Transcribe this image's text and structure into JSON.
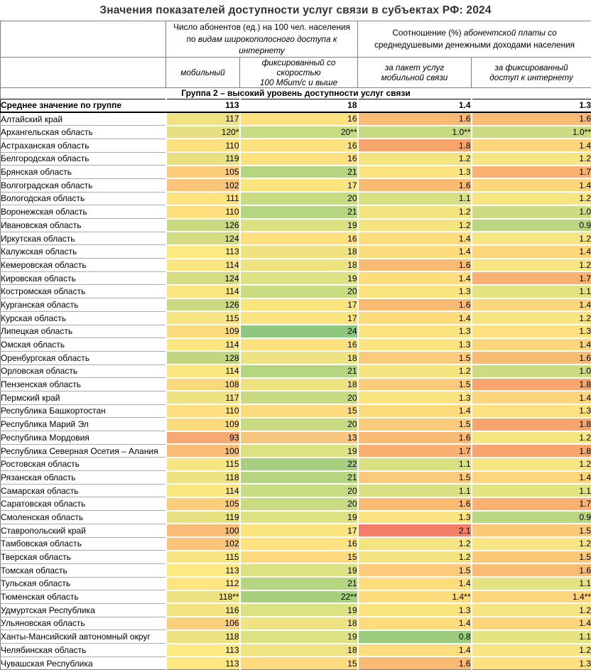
{
  "title": "Значения показателей доступности услуг связи в субъектах РФ: 2024",
  "header": {
    "group1": {
      "line1": "Число абонентов (ед.) на 100 чел. населения",
      "line2_prefix": "по ",
      "line2_italic": "видам широкополосного доступа к интернету",
      "sub1": "мобильный",
      "sub2_line1": "фиксированный со скоростью",
      "sub2_line2": "100 Мбит/с и выше"
    },
    "group2": {
      "line1_prefix": "Соотношение (%) ",
      "line1_italic": "абонентской платы со",
      "line2": "среднедушевыми денежными доходами населения",
      "sub1_line1": "за пакет услуг",
      "sub1_line2": "мобильной связи",
      "sub2_line1": "за фиксированный",
      "sub2_line2": "доступ к интернету"
    }
  },
  "group_row": "Группа 2 – высокий уровень доступности услуг связи",
  "average_row": {
    "label": "Среднее значение по группе",
    "values": [
      "113",
      "18",
      "1.4",
      "1.3"
    ]
  },
  "color_scales": {
    "c1": {
      "93": "#F8A873",
      "100": "#F9BD77",
      "102": "#FAC479",
      "105": "#FBCC7A",
      "106": "#FBCF7B",
      "108": "#FCD87D",
      "109": "#FCDB7D",
      "110": "#FDDF7D",
      "111": "#FDE27E",
      "112": "#FEE57F",
      "113": "#FEE880",
      "114": "#FBE680",
      "115": "#F6E580",
      "116": "#F2E480",
      "117": "#EFE381",
      "118": "#ECE281",
      "119": "#E7E182",
      "120": "#E3E082",
      "124": "#D3DC81",
      "126": "#CBD980",
      "128": "#C2D67F"
    },
    "c2": {
      "13": "#F8C57E",
      "15": "#FCDA7D",
      "16": "#FDE17E",
      "17": "#FAE47F",
      "18": "#EFE381",
      "19": "#DCE182",
      "20": "#C8DB81",
      "21": "#B6D580",
      "22": "#A6D07F",
      "24": "#8DC87E"
    },
    "c3": {
      "0.8": "#9CCD7E",
      "1.0": "#C6DB81",
      "1.1": "#D9E081",
      "1.2": "#F4E480",
      "1.3": "#FBE37F",
      "1.4": "#FDDC7C",
      "1.5": "#FACB7A",
      "1.6": "#F9BA73",
      "1.7": "#F8AF6F",
      "1.8": "#F7A46A",
      "2.1": "#F57E69"
    },
    "c4": {
      "0.9": "#BBD680",
      "1.0": "#CDDC81",
      "1.1": "#E4E381",
      "1.2": "#F7E581",
      "1.3": "#FDE17E",
      "1.4": "#FDD67B",
      "1.5": "#FBC878",
      "1.6": "#FABB74",
      "1.7": "#F9B070",
      "1.8": "#F7A56C"
    }
  },
  "rows": [
    {
      "region": "Алтайский край",
      "values": [
        "117",
        "16",
        "1.6",
        "1.6"
      ]
    },
    {
      "region": "Архангельская область",
      "values": [
        "120*",
        "20**",
        "1.0**",
        "1.0**"
      ]
    },
    {
      "region": "Астраханская область",
      "values": [
        "110",
        "16",
        "1.8",
        "1.4"
      ]
    },
    {
      "region": "Белгородская область",
      "values": [
        "119",
        "16",
        "1.2",
        "1.2"
      ]
    },
    {
      "region": "Брянская область",
      "values": [
        "105",
        "21",
        "1.3",
        "1.7"
      ]
    },
    {
      "region": "Волгоградская область",
      "values": [
        "102",
        "17",
        "1.6",
        "1.4"
      ]
    },
    {
      "region": "Вологодская область",
      "values": [
        "111",
        "20",
        "1.1",
        "1.2"
      ]
    },
    {
      "region": "Воронежская область",
      "values": [
        "110",
        "21",
        "1.2",
        "1.0"
      ]
    },
    {
      "region": "Ивановская область",
      "values": [
        "126",
        "19",
        "1.2",
        "0.9"
      ]
    },
    {
      "region": "Иркутская область",
      "values": [
        "124",
        "16",
        "1.4",
        "1.2"
      ]
    },
    {
      "region": "Калужская область",
      "values": [
        "113",
        "18",
        "1.4",
        "1.4"
      ]
    },
    {
      "region": "Кемеровская область",
      "values": [
        "114",
        "18",
        "1.6",
        "1.2"
      ]
    },
    {
      "region": "Кировская область",
      "values": [
        "124",
        "19",
        "1.4",
        "1.7"
      ]
    },
    {
      "region": "Костромская область",
      "values": [
        "114",
        "20",
        "1.3",
        "1.1"
      ]
    },
    {
      "region": "Курганская область",
      "values": [
        "126",
        "17",
        "1.6",
        "1.4"
      ]
    },
    {
      "region": "Курская область",
      "values": [
        "115",
        "17",
        "1.4",
        "1.2"
      ]
    },
    {
      "region": "Липецкая область",
      "values": [
        "109",
        "24",
        "1.3",
        "1.3"
      ]
    },
    {
      "region": "Омская область",
      "values": [
        "114",
        "16",
        "1.3",
        "1.4"
      ]
    },
    {
      "region": "Оренбургская область",
      "values": [
        "128",
        "18",
        "1.5",
        "1.6"
      ]
    },
    {
      "region": "Орловская область",
      "values": [
        "114",
        "21",
        "1.2",
        "1.0"
      ]
    },
    {
      "region": "Пензенская область",
      "values": [
        "108",
        "18",
        "1.5",
        "1.8"
      ]
    },
    {
      "region": "Пермский край",
      "values": [
        "117",
        "20",
        "1.3",
        "1.4"
      ]
    },
    {
      "region": "Республика Башкортостан",
      "values": [
        "110",
        "15",
        "1.4",
        "1.3"
      ]
    },
    {
      "region": "Республика Марий Эл",
      "values": [
        "109",
        "20",
        "1.5",
        "1.8"
      ]
    },
    {
      "region": "Республика Мордовия",
      "values": [
        "93",
        "13",
        "1.6",
        "1.2"
      ]
    },
    {
      "region": "Республика Северная Осетия – Алания",
      "values": [
        "100",
        "19",
        "1.7",
        "1.8"
      ]
    },
    {
      "region": "Ростовская область",
      "values": [
        "115",
        "22",
        "1.1",
        "1.2"
      ]
    },
    {
      "region": "Рязанская область",
      "values": [
        "118",
        "21",
        "1.5",
        "1.4"
      ]
    },
    {
      "region": "Самарская область",
      "values": [
        "114",
        "20",
        "1.1",
        "1.1"
      ]
    },
    {
      "region": "Саратовская область",
      "values": [
        "105",
        "20",
        "1.6",
        "1.7"
      ]
    },
    {
      "region": "Смоленская область",
      "values": [
        "119",
        "19",
        "1.3",
        "0.9"
      ]
    },
    {
      "region": "Ставропольский край",
      "values": [
        "100",
        "17",
        "2.1",
        "1.5"
      ]
    },
    {
      "region": "Тамбовская область",
      "values": [
        "102",
        "16",
        "1.2",
        "1.2"
      ]
    },
    {
      "region": "Тверская область",
      "values": [
        "115",
        "15",
        "1.2",
        "1.5"
      ]
    },
    {
      "region": "Томская область",
      "values": [
        "113",
        "19",
        "1.5",
        "1.6"
      ]
    },
    {
      "region": "Тульская область",
      "values": [
        "112",
        "21",
        "1.4",
        "1.1"
      ]
    },
    {
      "region": "Тюменская область",
      "values": [
        "118**",
        "22**",
        "1.4**",
        "1.4**"
      ]
    },
    {
      "region": "Удмуртская Республика",
      "values": [
        "116",
        "19",
        "1.3",
        "1.2"
      ]
    },
    {
      "region": "Ульяновская область",
      "values": [
        "106",
        "18",
        "1.4",
        "1.4"
      ]
    },
    {
      "region": "Ханты-Мансийский автономный округ",
      "values": [
        "118",
        "19",
        "0.8",
        "1.1"
      ]
    },
    {
      "region": "Челябинская область",
      "values": [
        "113",
        "18",
        "1.4",
        "1.2"
      ]
    },
    {
      "region": "Чувашская Республика",
      "values": [
        "113",
        "15",
        "1.6",
        "1.3"
      ]
    }
  ]
}
